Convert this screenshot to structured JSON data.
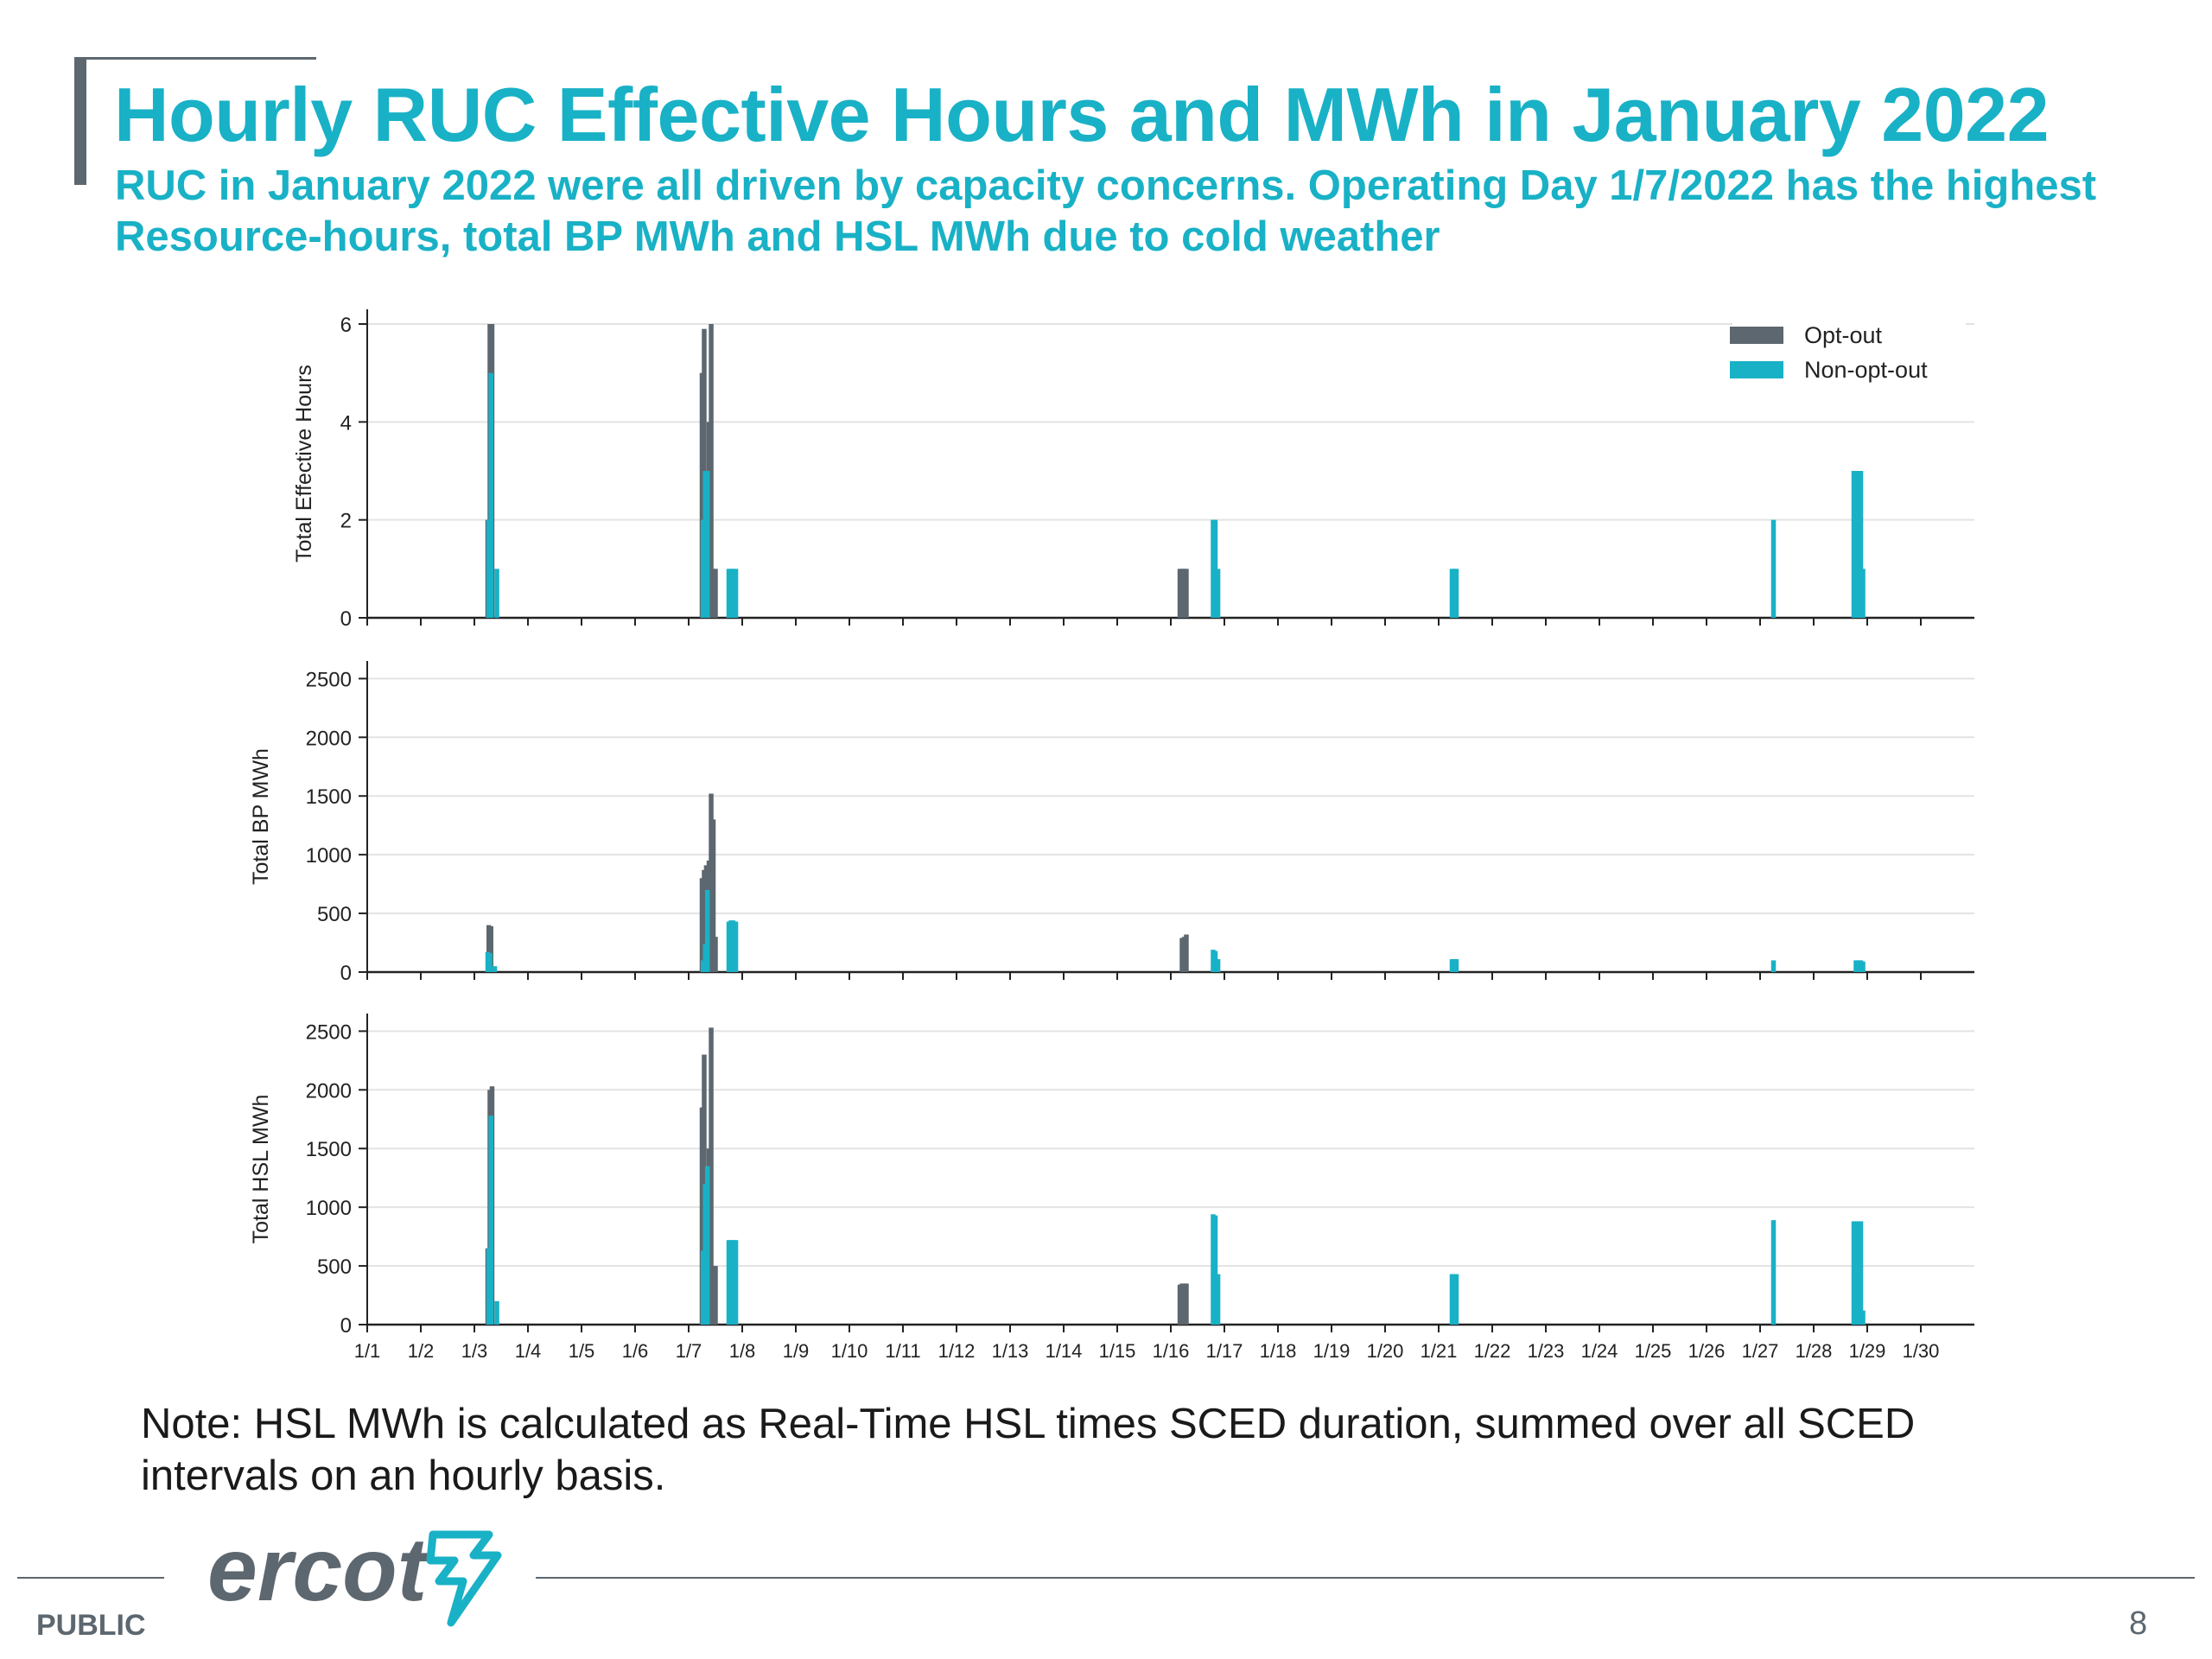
{
  "slide": {
    "title": "Hourly RUC Effective Hours and MWh in January 2022",
    "subtitle": "RUC in January 2022 were all driven by capacity concerns. Operating Day 1/7/2022 has the highest Resource-hours, total BP MWh and HSL MWh due to cold weather",
    "note": "Note: HSL MWh is calculated as Real-Time HSL times SCED duration, summed over all SCED intervals on an hourly basis.",
    "footer": {
      "label": "PUBLIC",
      "page_number": "8",
      "logo_text": "ercot"
    }
  },
  "colors": {
    "accent": "#19b1c6",
    "opt_out": "#5d676f",
    "non_opt_out": "#19b1c6",
    "grid": "#e3e3e3",
    "axis": "#222222"
  },
  "chart_data": {
    "type": "bar",
    "x_domain": [
      1,
      31
    ],
    "x_ticks": [
      "1/1",
      "1/2",
      "1/3",
      "1/4",
      "1/5",
      "1/6",
      "1/7",
      "1/8",
      "1/9",
      "1/10",
      "1/11",
      "1/12",
      "1/13",
      "1/14",
      "1/15",
      "1/16",
      "1/17",
      "1/18",
      "1/19",
      "1/20",
      "1/21",
      "1/22",
      "1/23",
      "1/24",
      "1/25",
      "1/26",
      "1/27",
      "1/28",
      "1/29",
      "1/30"
    ],
    "legend": {
      "placement": "top-right",
      "panel": 0
    },
    "grid": true,
    "series_names": [
      "Opt-out",
      "Non-opt-out"
    ],
    "panels": [
      {
        "ylabel": "Total Effective Hours",
        "ylim": [
          0,
          6.3
        ],
        "yticks": [
          0,
          2,
          4,
          6
        ],
        "series": [
          {
            "name": "Opt-out",
            "points": [
              {
                "x": 3.25,
                "y": 2
              },
              {
                "x": 3.29,
                "y": 6
              },
              {
                "x": 3.33,
                "y": 6
              },
              {
                "x": 7.25,
                "y": 5
              },
              {
                "x": 7.29,
                "y": 5.9
              },
              {
                "x": 7.33,
                "y": 3
              },
              {
                "x": 7.38,
                "y": 4
              },
              {
                "x": 7.42,
                "y": 6
              },
              {
                "x": 7.46,
                "y": 1
              },
              {
                "x": 7.5,
                "y": 1
              },
              {
                "x": 16.17,
                "y": 1
              },
              {
                "x": 16.21,
                "y": 1
              },
              {
                "x": 16.25,
                "y": 1
              },
              {
                "x": 16.29,
                "y": 1
              }
            ]
          },
          {
            "name": "Non-opt-out",
            "points": [
              {
                "x": 3.27,
                "y": 2
              },
              {
                "x": 3.31,
                "y": 5
              },
              {
                "x": 3.42,
                "y": 1
              },
              {
                "x": 7.27,
                "y": 2
              },
              {
                "x": 7.31,
                "y": 3
              },
              {
                "x": 7.35,
                "y": 3
              },
              {
                "x": 7.75,
                "y": 1
              },
              {
                "x": 7.79,
                "y": 1
              },
              {
                "x": 7.83,
                "y": 1
              },
              {
                "x": 7.88,
                "y": 1
              },
              {
                "x": 16.79,
                "y": 2
              },
              {
                "x": 16.83,
                "y": 2
              },
              {
                "x": 16.88,
                "y": 1
              },
              {
                "x": 21.25,
                "y": 1
              },
              {
                "x": 21.29,
                "y": 1
              },
              {
                "x": 21.33,
                "y": 1
              },
              {
                "x": 27.25,
                "y": 2
              },
              {
                "x": 28.75,
                "y": 3
              },
              {
                "x": 28.79,
                "y": 3
              },
              {
                "x": 28.83,
                "y": 3
              },
              {
                "x": 28.88,
                "y": 3
              },
              {
                "x": 28.92,
                "y": 1
              }
            ]
          }
        ]
      },
      {
        "ylabel": "Total BP MWh",
        "ylim": [
          0,
          2650
        ],
        "yticks": [
          0,
          500,
          1000,
          1500,
          2000,
          2500
        ],
        "series": [
          {
            "name": "Opt-out",
            "points": [
              {
                "x": 3.27,
                "y": 400
              },
              {
                "x": 3.31,
                "y": 390
              },
              {
                "x": 7.25,
                "y": 800
              },
              {
                "x": 7.29,
                "y": 870
              },
              {
                "x": 7.33,
                "y": 910
              },
              {
                "x": 7.38,
                "y": 950
              },
              {
                "x": 7.42,
                "y": 1520
              },
              {
                "x": 7.46,
                "y": 1300
              },
              {
                "x": 7.5,
                "y": 300
              },
              {
                "x": 16.21,
                "y": 290
              },
              {
                "x": 16.25,
                "y": 300
              },
              {
                "x": 16.29,
                "y": 320
              }
            ]
          },
          {
            "name": "Non-opt-out",
            "points": [
              {
                "x": 3.25,
                "y": 170
              },
              {
                "x": 3.29,
                "y": 160
              },
              {
                "x": 3.38,
                "y": 50
              },
              {
                "x": 7.27,
                "y": 100
              },
              {
                "x": 7.31,
                "y": 240
              },
              {
                "x": 7.35,
                "y": 700
              },
              {
                "x": 7.75,
                "y": 430
              },
              {
                "x": 7.79,
                "y": 440
              },
              {
                "x": 7.83,
                "y": 440
              },
              {
                "x": 7.88,
                "y": 430
              },
              {
                "x": 16.79,
                "y": 190
              },
              {
                "x": 16.83,
                "y": 180
              },
              {
                "x": 16.88,
                "y": 110
              },
              {
                "x": 21.25,
                "y": 110
              },
              {
                "x": 21.29,
                "y": 110
              },
              {
                "x": 21.33,
                "y": 110
              },
              {
                "x": 27.25,
                "y": 100
              },
              {
                "x": 28.79,
                "y": 100
              },
              {
                "x": 28.83,
                "y": 100
              },
              {
                "x": 28.88,
                "y": 100
              },
              {
                "x": 28.92,
                "y": 90
              }
            ]
          }
        ]
      },
      {
        "ylabel": "Total HSL MWh",
        "ylim": [
          0,
          2650
        ],
        "yticks": [
          0,
          500,
          1000,
          1500,
          2000,
          2500
        ],
        "series": [
          {
            "name": "Opt-out",
            "points": [
              {
                "x": 3.25,
                "y": 650
              },
              {
                "x": 3.29,
                "y": 2000
              },
              {
                "x": 3.33,
                "y": 2030
              },
              {
                "x": 7.25,
                "y": 1850
              },
              {
                "x": 7.29,
                "y": 2300
              },
              {
                "x": 7.33,
                "y": 1200
              },
              {
                "x": 7.38,
                "y": 1500
              },
              {
                "x": 7.42,
                "y": 2530
              },
              {
                "x": 7.46,
                "y": 500
              },
              {
                "x": 7.5,
                "y": 500
              },
              {
                "x": 16.17,
                "y": 340
              },
              {
                "x": 16.21,
                "y": 350
              },
              {
                "x": 16.25,
                "y": 350
              },
              {
                "x": 16.29,
                "y": 350
              }
            ]
          },
          {
            "name": "Non-opt-out",
            "points": [
              {
                "x": 3.27,
                "y": 650
              },
              {
                "x": 3.31,
                "y": 1780
              },
              {
                "x": 3.42,
                "y": 200
              },
              {
                "x": 7.27,
                "y": 630
              },
              {
                "x": 7.31,
                "y": 1200
              },
              {
                "x": 7.35,
                "y": 1350
              },
              {
                "x": 7.75,
                "y": 720
              },
              {
                "x": 7.79,
                "y": 720
              },
              {
                "x": 7.83,
                "y": 720
              },
              {
                "x": 7.88,
                "y": 720
              },
              {
                "x": 16.79,
                "y": 940
              },
              {
                "x": 16.83,
                "y": 930
              },
              {
                "x": 16.88,
                "y": 430
              },
              {
                "x": 21.25,
                "y": 430
              },
              {
                "x": 21.29,
                "y": 430
              },
              {
                "x": 21.33,
                "y": 430
              },
              {
                "x": 27.25,
                "y": 890
              },
              {
                "x": 28.75,
                "y": 880
              },
              {
                "x": 28.79,
                "y": 880
              },
              {
                "x": 28.83,
                "y": 880
              },
              {
                "x": 28.88,
                "y": 880
              },
              {
                "x": 28.92,
                "y": 120
              }
            ]
          }
        ]
      }
    ]
  }
}
